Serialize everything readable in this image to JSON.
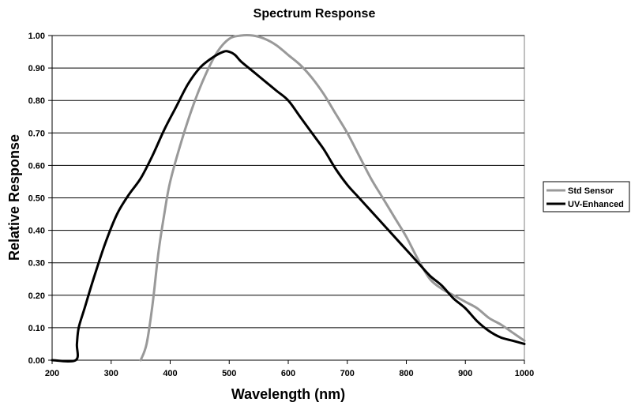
{
  "chart_data": {
    "type": "line",
    "title": "Spectrum Response",
    "xlabel": "Wavelength (nm)",
    "ylabel": "Relative Response",
    "xlim": [
      200,
      1000
    ],
    "ylim": [
      0,
      1.0
    ],
    "x_ticks": [
      "200",
      "300",
      "400",
      "500",
      "600",
      "700",
      "800",
      "900",
      "1000"
    ],
    "y_ticks": [
      "0.00",
      "0.10",
      "0.20",
      "0.30",
      "0.40",
      "0.50",
      "0.60",
      "0.70",
      "0.80",
      "0.90",
      "1.00"
    ],
    "grid": "horizontal",
    "legend_position": "right",
    "series": [
      {
        "name": "Std Sensor",
        "color": "#999999",
        "points": [
          [
            350,
            0.0
          ],
          [
            360,
            0.05
          ],
          [
            370,
            0.17
          ],
          [
            380,
            0.33
          ],
          [
            390,
            0.45
          ],
          [
            400,
            0.55
          ],
          [
            420,
            0.68
          ],
          [
            440,
            0.79
          ],
          [
            460,
            0.88
          ],
          [
            480,
            0.95
          ],
          [
            500,
            0.99
          ],
          [
            520,
            1.0
          ],
          [
            540,
            1.0
          ],
          [
            560,
            0.99
          ],
          [
            580,
            0.97
          ],
          [
            600,
            0.94
          ],
          [
            620,
            0.91
          ],
          [
            640,
            0.87
          ],
          [
            660,
            0.82
          ],
          [
            680,
            0.76
          ],
          [
            700,
            0.7
          ],
          [
            720,
            0.63
          ],
          [
            740,
            0.56
          ],
          [
            760,
            0.5
          ],
          [
            780,
            0.44
          ],
          [
            800,
            0.38
          ],
          [
            820,
            0.31
          ],
          [
            840,
            0.25
          ],
          [
            860,
            0.22
          ],
          [
            880,
            0.2
          ],
          [
            900,
            0.18
          ],
          [
            920,
            0.16
          ],
          [
            940,
            0.13
          ],
          [
            960,
            0.11
          ],
          [
            980,
            0.085
          ],
          [
            1000,
            0.06
          ]
        ]
      },
      {
        "name": "UV-Enhanced",
        "color": "#000000",
        "points": [
          [
            200,
            0.0
          ],
          [
            240,
            0.0
          ],
          [
            242,
            0.05
          ],
          [
            245,
            0.1
          ],
          [
            255,
            0.16
          ],
          [
            270,
            0.25
          ],
          [
            290,
            0.36
          ],
          [
            310,
            0.45
          ],
          [
            330,
            0.51
          ],
          [
            350,
            0.56
          ],
          [
            370,
            0.63
          ],
          [
            390,
            0.71
          ],
          [
            410,
            0.78
          ],
          [
            430,
            0.85
          ],
          [
            450,
            0.9
          ],
          [
            470,
            0.93
          ],
          [
            490,
            0.95
          ],
          [
            500,
            0.95
          ],
          [
            510,
            0.94
          ],
          [
            520,
            0.92
          ],
          [
            540,
            0.89
          ],
          [
            560,
            0.86
          ],
          [
            580,
            0.83
          ],
          [
            600,
            0.8
          ],
          [
            620,
            0.75
          ],
          [
            640,
            0.7
          ],
          [
            660,
            0.65
          ],
          [
            680,
            0.59
          ],
          [
            700,
            0.54
          ],
          [
            720,
            0.5
          ],
          [
            740,
            0.46
          ],
          [
            760,
            0.42
          ],
          [
            780,
            0.38
          ],
          [
            800,
            0.34
          ],
          [
            820,
            0.3
          ],
          [
            840,
            0.26
          ],
          [
            860,
            0.23
          ],
          [
            880,
            0.19
          ],
          [
            900,
            0.16
          ],
          [
            920,
            0.12
          ],
          [
            940,
            0.09
          ],
          [
            960,
            0.07
          ],
          [
            980,
            0.06
          ],
          [
            1000,
            0.05
          ]
        ]
      }
    ]
  }
}
